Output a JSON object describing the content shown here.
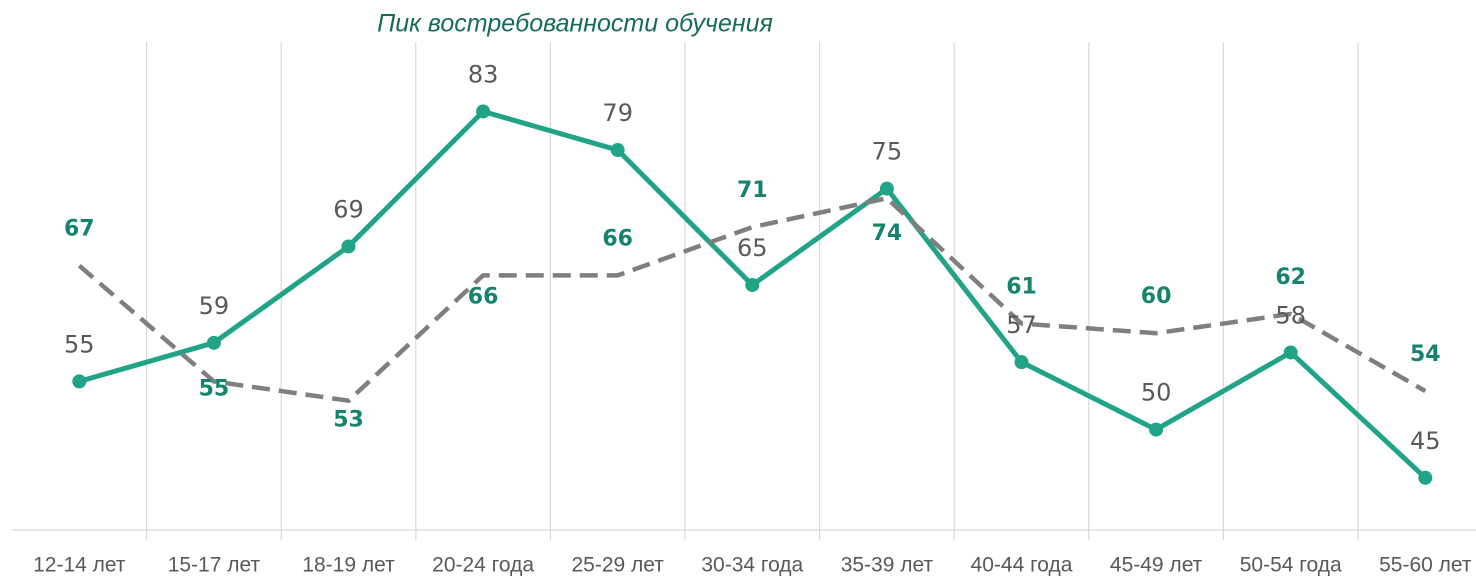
{
  "chart_data": {
    "type": "line",
    "title": "Пик востребованности обучения",
    "categories": [
      "12-14 лет",
      "15-17 лет",
      "18-19 лет",
      "20-24 года",
      "25-29 лет",
      "30-34 года",
      "35-39 лет",
      "40-44 года",
      "45-49 лет",
      "50-54 года",
      "55-60 лет"
    ],
    "series": [
      {
        "color": "#20a386",
        "dashed": false,
        "markers": true,
        "values": [
          55,
          59,
          69,
          83,
          79,
          65,
          75,
          57,
          50,
          58,
          45
        ]
      },
      {
        "color": "#7f7f7f",
        "dashed": true,
        "markers": false,
        "values": [
          67,
          55,
          53,
          66,
          66,
          71,
          74,
          61,
          60,
          62,
          54
        ]
      }
    ],
    "ylim": [
      40,
      90
    ]
  }
}
